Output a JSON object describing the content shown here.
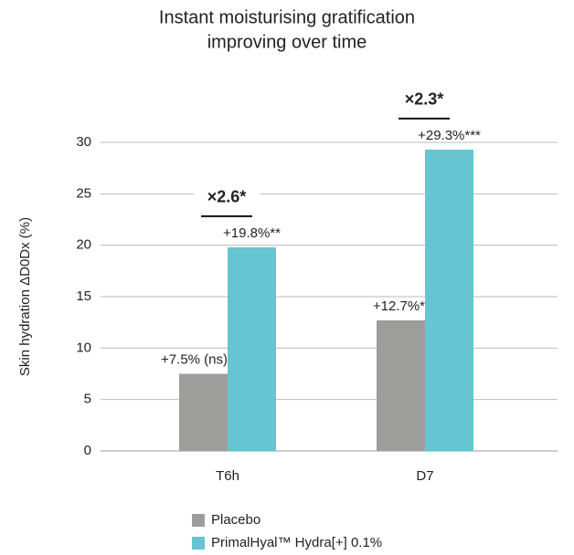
{
  "chart_data": {
    "type": "bar",
    "title": [
      "Instant moisturising gratification",
      "improving over time"
    ],
    "y_label": "Skin hydration ΔD0Dx (%)",
    "categories": [
      "T6h",
      "D7"
    ],
    "series": [
      {
        "name": "Placebo",
        "color": "#9d9d9c",
        "values": [
          7.5,
          12.7
        ],
        "value_labels": [
          "+7.5% (ns)",
          "+12.7%*"
        ]
      },
      {
        "name": "PrimalHyal™ Hydra[+] 0.1%",
        "color": "#66c5d1",
        "values": [
          19.8,
          29.3
        ],
        "value_labels": [
          "+19.8%**",
          "+29.3%***"
        ]
      }
    ],
    "annotations": [
      "×2.6*",
      "×2.3*"
    ],
    "ylim": [
      0,
      30
    ],
    "yticks": [
      0,
      5,
      10,
      15,
      20,
      25,
      30
    ],
    "grid": true
  }
}
